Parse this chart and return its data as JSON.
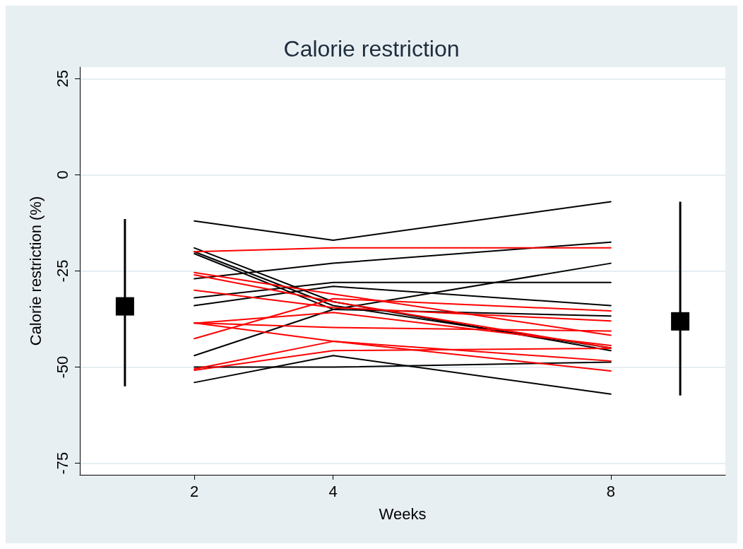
{
  "chart_data": {
    "type": "line",
    "title": "Calorie restriction",
    "xlabel": "Weeks",
    "ylabel": "Calorie restriction (%)",
    "xlim": [
      0.35,
      9.65
    ],
    "xticks": [
      2,
      4,
      8
    ],
    "ylim": [
      -78,
      28
    ],
    "yticks": [
      -75,
      -50,
      -25,
      0,
      25
    ],
    "grid": "y",
    "marker": "none",
    "line_style": "solid",
    "series": [
      {
        "color": "#000000",
        "x": [
          2,
          4,
          8
        ],
        "values": [
          -12,
          -17,
          -7
        ]
      },
      {
        "color": "#000000",
        "x": [
          2,
          4,
          8
        ],
        "values": [
          -27,
          -23,
          -17.5
        ]
      },
      {
        "color": "#000000",
        "x": [
          2,
          4,
          8
        ],
        "values": [
          -47,
          -35,
          -23
        ]
      },
      {
        "color": "#000000",
        "x": [
          2,
          4,
          8
        ],
        "values": [
          -50,
          -50,
          -48.7
        ]
      },
      {
        "color": "#000000",
        "x": [
          2,
          4,
          8
        ],
        "values": [
          -54,
          -47,
          -57
        ]
      },
      {
        "color": "#000000",
        "x": [
          2,
          4,
          8
        ],
        "values": [
          -19,
          -33,
          -45.7
        ]
      },
      {
        "color": "#000000",
        "x": [
          2,
          4,
          8
        ],
        "values": [
          -20,
          -34,
          -45
        ]
      },
      {
        "color": "#000000",
        "x": [
          2,
          4,
          8
        ],
        "values": [
          -20.5,
          -35,
          -36.7
        ]
      },
      {
        "color": "#000000",
        "x": [
          2,
          4,
          8
        ],
        "values": [
          -32,
          -28,
          -28
        ]
      },
      {
        "color": "#000000",
        "x": [
          2,
          4,
          8
        ],
        "values": [
          -34,
          -29,
          -34
        ]
      },
      {
        "color": "#ff0000",
        "x": [
          2,
          4,
          8
        ],
        "values": [
          -20,
          -19,
          -19
        ]
      },
      {
        "color": "#ff0000",
        "x": [
          2,
          4,
          8
        ],
        "values": [
          -25.4,
          -31,
          -41.7
        ]
      },
      {
        "color": "#ff0000",
        "x": [
          2,
          4,
          8
        ],
        "values": [
          -26,
          -33,
          -45
        ]
      },
      {
        "color": "#ff0000",
        "x": [
          2,
          4,
          8
        ],
        "values": [
          -30,
          -34.5,
          -38
        ]
      },
      {
        "color": "#ff0000",
        "x": [
          2,
          4,
          8
        ],
        "values": [
          -38.5,
          -39.7,
          -40.6
        ]
      },
      {
        "color": "#ff0000",
        "x": [
          2,
          4,
          8
        ],
        "values": [
          -38.5,
          -43.3,
          -51
        ]
      },
      {
        "color": "#ff0000",
        "x": [
          2,
          4,
          8
        ],
        "values": [
          -42.6,
          -32.2,
          -35.4
        ]
      },
      {
        "color": "#ff0000",
        "x": [
          2,
          4,
          8
        ],
        "values": [
          -50.5,
          -43.3,
          -48.4
        ]
      },
      {
        "color": "#ff0000",
        "x": [
          2,
          4,
          8
        ],
        "values": [
          -50.8,
          -45.7,
          -45.1
        ]
      },
      {
        "color": "#ff0000",
        "x": [
          2,
          4,
          8
        ],
        "values": [
          -38.6,
          -35.8,
          -44.4
        ]
      },
      {
        "type": "scatter",
        "marker": "square",
        "color": "#000000",
        "x": [
          1,
          9
        ],
        "values": [
          -34.2,
          -38.1
        ],
        "errors": [
          [
            -55,
            -11.5
          ],
          [
            -57.4,
            -7
          ]
        ]
      }
    ]
  }
}
